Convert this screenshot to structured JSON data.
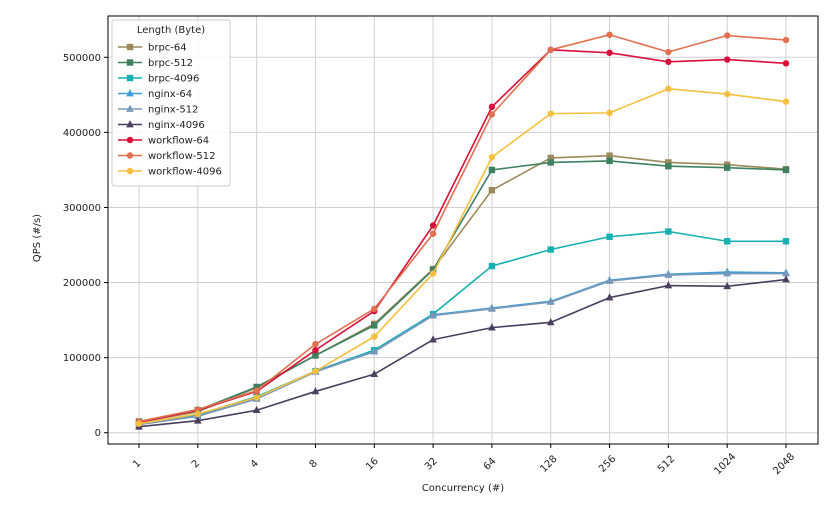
{
  "chart_data": {
    "type": "line",
    "title": "",
    "xlabel": "Concurrency (#)",
    "ylabel": "QPS (#/s)",
    "x": [
      "1",
      "2",
      "4",
      "8",
      "16",
      "32",
      "64",
      "128",
      "256",
      "512",
      "1024",
      "2048"
    ],
    "x_scale": "categorical",
    "ylim": [
      -15000,
      555000
    ],
    "yticks": [
      0,
      100000,
      200000,
      300000,
      400000,
      500000
    ],
    "ytick_labels": [
      "0",
      "100000",
      "200000",
      "300000",
      "400000",
      "500000"
    ],
    "grid": true,
    "legend": {
      "title": "Length (Byte)",
      "placement": "top-left"
    },
    "series": [
      {
        "name": "brpc-64",
        "color": "#9a8a5a",
        "marker": "square",
        "values": [
          14000,
          28000,
          60000,
          103000,
          145000,
          218000,
          323000,
          366000,
          369000,
          360000,
          357000,
          351000
        ]
      },
      {
        "name": "brpc-512",
        "color": "#3f8060",
        "marker": "square",
        "values": [
          15000,
          30000,
          61000,
          103000,
          143000,
          217000,
          350000,
          360000,
          362000,
          355000,
          353000,
          350000
        ]
      },
      {
        "name": "brpc-4096",
        "color": "#17b0b0",
        "marker": "square",
        "values": [
          12000,
          24000,
          48000,
          82000,
          110000,
          158000,
          222000,
          244000,
          261000,
          268000,
          255000,
          255000
        ]
      },
      {
        "name": "nginx-64",
        "color": "#3a9ed8",
        "marker": "triangle",
        "values": [
          11000,
          22000,
          46000,
          82000,
          108000,
          157000,
          166000,
          175000,
          203000,
          211000,
          214000,
          213000
        ]
      },
      {
        "name": "nginx-512",
        "color": "#7a98b8",
        "marker": "triangle",
        "values": [
          11000,
          22000,
          45000,
          81000,
          108000,
          156000,
          165000,
          174000,
          202000,
          210000,
          212000,
          212000
        ]
      },
      {
        "name": "nginx-4096",
        "color": "#4a3f5f",
        "marker": "triangle",
        "values": [
          8000,
          16000,
          30000,
          55000,
          78000,
          124000,
          140000,
          147000,
          180000,
          196000,
          195000,
          204000
        ]
      },
      {
        "name": "workflow-64",
        "color": "#d8103a",
        "marker": "circle",
        "values": [
          14000,
          30000,
          55000,
          110000,
          162000,
          276000,
          434000,
          510000,
          506000,
          494000,
          497000,
          492000
        ]
      },
      {
        "name": "workflow-512",
        "color": "#e07050",
        "marker": "circle",
        "values": [
          15000,
          31000,
          56000,
          118000,
          165000,
          265000,
          424000,
          510000,
          530000,
          507000,
          529000,
          523000
        ]
      },
      {
        "name": "workflow-4096",
        "color": "#f5c040",
        "marker": "circle",
        "values": [
          12000,
          25000,
          47000,
          82000,
          128000,
          212000,
          367000,
          425000,
          426000,
          458000,
          451000,
          441000
        ]
      }
    ]
  }
}
